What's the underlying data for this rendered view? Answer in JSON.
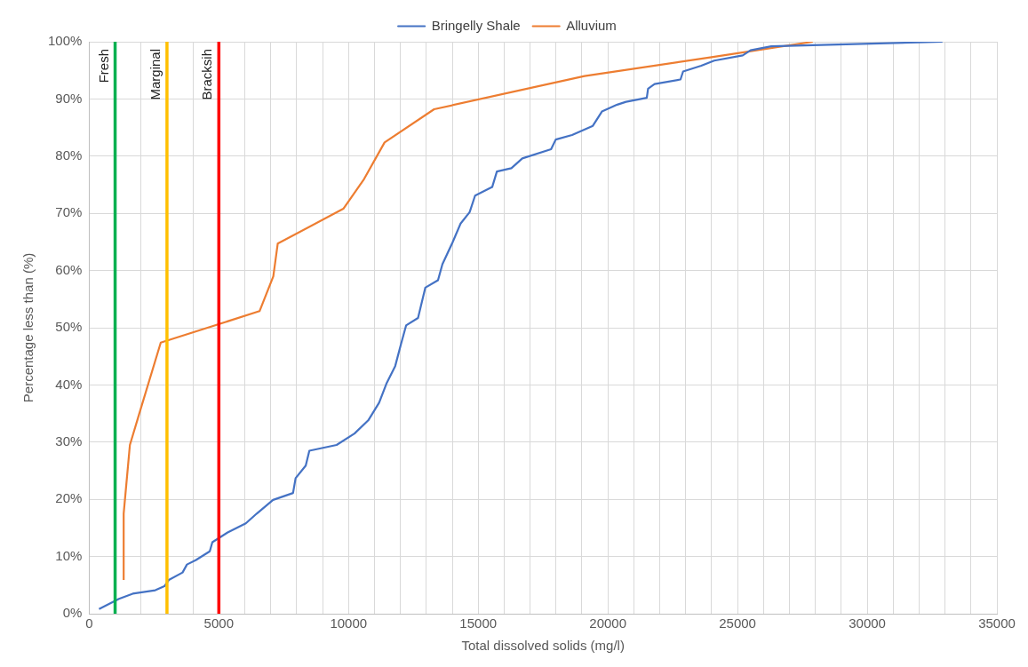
{
  "chart_data": {
    "type": "line",
    "xlabel": "Total dissolved solids (mg/l)",
    "ylabel": "Percentage less than (%)",
    "legend": "top",
    "grid": true,
    "marker": "none",
    "line_style": "solid",
    "xlim": [
      0,
      35000
    ],
    "xticks": [
      0,
      {
        "value": 1000,
        "label": null
      },
      {
        "value": 2000,
        "label": null
      },
      {
        "value": 3000,
        "label": null
      },
      {
        "value": 4000,
        "label": null
      },
      5000,
      {
        "value": 6000,
        "label": null
      },
      {
        "value": 7000,
        "label": null
      },
      {
        "value": 8000,
        "label": null
      },
      {
        "value": 9000,
        "label": null
      },
      10000,
      {
        "value": 11000,
        "label": null
      },
      {
        "value": 12000,
        "label": null
      },
      {
        "value": 13000,
        "label": null
      },
      {
        "value": 14000,
        "label": null
      },
      15000,
      {
        "value": 16000,
        "label": null
      },
      {
        "value": 17000,
        "label": null
      },
      {
        "value": 18000,
        "label": null
      },
      {
        "value": 19000,
        "label": null
      },
      20000,
      {
        "value": 21000,
        "label": null
      },
      {
        "value": 22000,
        "label": null
      },
      {
        "value": 23000,
        "label": null
      },
      {
        "value": 24000,
        "label": null
      },
      25000,
      {
        "value": 26000,
        "label": null
      },
      {
        "value": 27000,
        "label": null
      },
      {
        "value": 28000,
        "label": null
      },
      {
        "value": 29000,
        "label": null
      },
      30000,
      {
        "value": 31000,
        "label": null
      },
      {
        "value": 32000,
        "label": null
      },
      {
        "value": 33000,
        "label": null
      },
      {
        "value": 34000,
        "label": null
      },
      35000
    ],
    "ylim": [
      0,
      100
    ],
    "yticks": [
      {
        "value": 0,
        "label": "0%"
      },
      {
        "value": 10,
        "label": "10%"
      },
      {
        "value": 20,
        "label": "20%"
      },
      {
        "value": 30,
        "label": "30%"
      },
      {
        "value": 40,
        "label": "40%"
      },
      {
        "value": 50,
        "label": "50%"
      },
      {
        "value": 60,
        "label": "60%"
      },
      {
        "value": 70,
        "label": "70%"
      },
      {
        "value": 80,
        "label": "80%"
      },
      {
        "value": 90,
        "label": "90%"
      },
      {
        "value": 100,
        "label": "100%"
      }
    ],
    "series": [
      {
        "name": "Bringelly Shale",
        "color": "#4472c4",
        "x": [
          380,
          1150,
          1680,
          2550,
          2900,
          3070,
          3600,
          3770,
          4120,
          4650,
          4750,
          5340,
          6040,
          6460,
          7090,
          7860,
          7960,
          8350,
          8490,
          9540,
          10230,
          10760,
          11180,
          11460,
          11800,
          12020,
          12220,
          12680,
          12960,
          13450,
          13620,
          14010,
          14320,
          14670,
          14880,
          15540,
          15720,
          16280,
          16700,
          17810,
          17990,
          18620,
          19420,
          19770,
          20360,
          20700,
          21500,
          21550,
          21800,
          22800,
          22900,
          23600,
          24100,
          25200,
          25500,
          26300,
          32900
        ],
        "values": [
          0.8,
          2.6,
          3.5,
          4.1,
          4.8,
          5.9,
          7.2,
          8.6,
          9.4,
          10.9,
          12.5,
          14.2,
          15.8,
          17.5,
          19.9,
          21.1,
          23.7,
          25.9,
          28.5,
          29.5,
          31.5,
          33.8,
          36.9,
          40.2,
          43.3,
          47.1,
          50.4,
          51.7,
          57,
          58.3,
          61.1,
          64.9,
          68.2,
          70.2,
          73.1,
          74.6,
          77.3,
          77.9,
          79.6,
          81.2,
          82.9,
          83.7,
          85.3,
          87.8,
          89,
          89.5,
          90.2,
          91.8,
          92.6,
          93.4,
          94.8,
          95.8,
          96.7,
          97.6,
          98.5,
          99.2,
          100
        ]
      },
      {
        "name": "Alluvium",
        "color": "#ed7d31",
        "x": [
          1330,
          1330,
          1570,
          1920,
          2760,
          6570,
          7100,
          7270,
          9800,
          10600,
          11390,
          13300,
          19100,
          24000,
          27900
        ],
        "values": [
          5.9,
          17.5,
          29.5,
          34.8,
          47.4,
          52.9,
          59,
          64.7,
          70.8,
          76,
          82.4,
          88.2,
          94,
          97.3,
          100
        ]
      }
    ],
    "ref_lines": [
      {
        "axis": "x",
        "value": 1000,
        "label": "Fresh",
        "color": "#00b050"
      },
      {
        "axis": "x",
        "value": 3000,
        "label": "Marginal",
        "color": "#ffc000"
      },
      {
        "axis": "x",
        "value": 5000,
        "label": "Bracksih",
        "color": "#ff0000"
      }
    ]
  }
}
